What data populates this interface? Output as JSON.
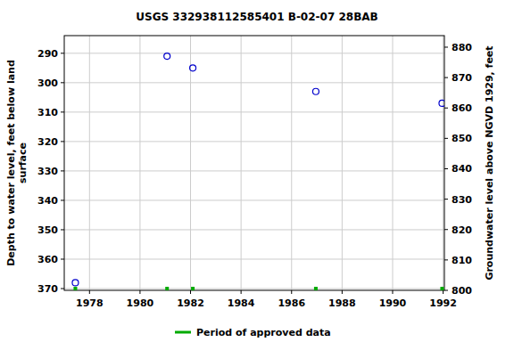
{
  "chart_data": {
    "type": "scatter",
    "title": "USGS 332938112585401 B-02-07 28BAB",
    "ylabel": [
      "Depth to water level, feet below land",
      "surface"
    ],
    "y2label": "Groundwater level above NGVD 1929, feet",
    "xlim": [
      1977.0,
      1992.05
    ],
    "xticks": [
      1978,
      1980,
      1982,
      1984,
      1986,
      1988,
      1990,
      1992
    ],
    "ylim": [
      284,
      370.6
    ],
    "yticks": [
      290,
      300,
      310,
      320,
      330,
      340,
      350,
      360,
      370
    ],
    "y2lim": [
      883.8,
      800
    ],
    "y2ticks": [
      800,
      810,
      820,
      830,
      840,
      850,
      860,
      870,
      880
    ],
    "grid": true,
    "legend": "bottom",
    "series": [
      {
        "color": "#0000cc",
        "marker": "circle",
        "x": [
          1977.44,
          1981.07,
          1982.09,
          1986.96,
          1991.96
        ],
        "values": [
          368,
          291,
          295,
          303,
          307
        ]
      },
      {
        "name": "Period of approved data",
        "color": "#00aa00",
        "marker": "square",
        "x": [
          1977.44,
          1981.07,
          1982.09,
          1986.96,
          1991.96
        ],
        "values": [
          370,
          370,
          370,
          370,
          370
        ]
      }
    ]
  }
}
